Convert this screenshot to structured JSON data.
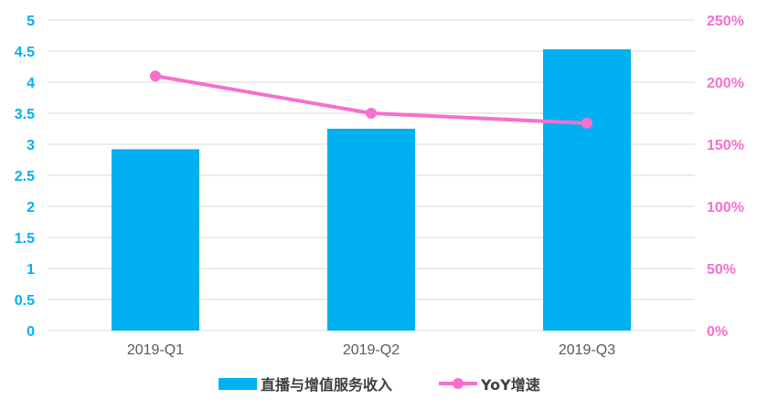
{
  "chart_data": {
    "type": "bar",
    "categories": [
      "2019-Q1",
      "2019-Q2",
      "2019-Q3"
    ],
    "series": [
      {
        "name": "直播与增值服务收入",
        "type": "bar",
        "axis": "left",
        "values": [
          2.92,
          3.25,
          4.53
        ],
        "color": "#00B0F0"
      },
      {
        "name": "YoY增速",
        "type": "line",
        "axis": "right",
        "values": [
          205,
          175,
          167
        ],
        "color": "#F66FCE"
      }
    ],
    "left_axis": {
      "ylim": [
        0,
        5
      ],
      "ticks": [
        "0",
        "0.5",
        "1",
        "1.5",
        "2",
        "2.5",
        "3",
        "3.5",
        "4",
        "4.5",
        "5"
      ],
      "color": "#00B0F0"
    },
    "right_axis": {
      "ylim": [
        0,
        250
      ],
      "ticks": [
        "0%",
        "50%",
        "100%",
        "150%",
        "200%",
        "250%"
      ],
      "color": "#F66FCE"
    },
    "grid": true,
    "legend": "bottom",
    "title": "",
    "xlabel": "",
    "ylabel": ""
  }
}
